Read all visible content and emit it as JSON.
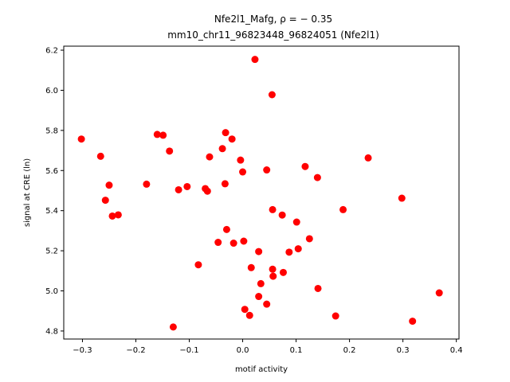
{
  "chart_data": {
    "type": "scatter",
    "title_line1": "Nfe2l1_Mafg, ρ = − 0.35",
    "title_line2": "mm10_chr11_96823448_96824051 (Nfe2l1)",
    "xlabel": "motif activity",
    "ylabel": "signal at CRE (ln)",
    "xlim": [
      -0.335,
      0.405
    ],
    "ylim": [
      4.76,
      6.22
    ],
    "xticks": [
      "−0.3",
      "−0.2",
      "−0.1",
      "0.0",
      "0.1",
      "0.2",
      "0.3",
      "0.4"
    ],
    "xtick_values": [
      -0.3,
      -0.2,
      -0.1,
      0.0,
      0.1,
      0.2,
      0.3,
      0.4
    ],
    "yticks": [
      "4.8",
      "5.0",
      "5.2",
      "5.4",
      "5.6",
      "5.8",
      "6.0",
      "6.2"
    ],
    "ytick_values": [
      4.8,
      5.0,
      5.2,
      5.4,
      5.6,
      5.8,
      6.0,
      6.2
    ],
    "marker_color": "#ff0000",
    "points": [
      [
        -0.302,
        5.757
      ],
      [
        -0.266,
        5.671
      ],
      [
        -0.257,
        5.452
      ],
      [
        -0.25,
        5.527
      ],
      [
        -0.244,
        5.373
      ],
      [
        -0.233,
        5.379
      ],
      [
        -0.18,
        5.532
      ],
      [
        -0.16,
        5.78
      ],
      [
        -0.149,
        5.776
      ],
      [
        -0.137,
        5.697
      ],
      [
        -0.12,
        5.504
      ],
      [
        -0.104,
        5.52
      ],
      [
        -0.13,
        4.82
      ],
      [
        -0.083,
        5.13
      ],
      [
        -0.07,
        5.51
      ],
      [
        -0.066,
        5.497
      ],
      [
        -0.062,
        5.668
      ],
      [
        -0.046,
        5.242
      ],
      [
        -0.038,
        5.709
      ],
      [
        -0.033,
        5.534
      ],
      [
        -0.032,
        5.789
      ],
      [
        -0.03,
        5.306
      ],
      [
        -0.02,
        5.757
      ],
      [
        -0.017,
        5.238
      ],
      [
        -0.004,
        5.652
      ],
      [
        0.0,
        5.593
      ],
      [
        0.002,
        5.248
      ],
      [
        0.004,
        4.908
      ],
      [
        0.013,
        4.878
      ],
      [
        0.016,
        5.116
      ],
      [
        0.023,
        6.154
      ],
      [
        0.03,
        5.196
      ],
      [
        0.03,
        4.972
      ],
      [
        0.034,
        5.036
      ],
      [
        0.045,
        5.603
      ],
      [
        0.045,
        4.934
      ],
      [
        0.055,
        5.978
      ],
      [
        0.056,
        5.405
      ],
      [
        0.056,
        5.108
      ],
      [
        0.057,
        5.073
      ],
      [
        0.074,
        5.378
      ],
      [
        0.076,
        5.092
      ],
      [
        0.087,
        5.193
      ],
      [
        0.101,
        5.343
      ],
      [
        0.104,
        5.21
      ],
      [
        0.117,
        5.62
      ],
      [
        0.125,
        5.26
      ],
      [
        0.14,
        5.565
      ],
      [
        0.141,
        5.012
      ],
      [
        0.174,
        4.875
      ],
      [
        0.188,
        5.405
      ],
      [
        0.235,
        5.663
      ],
      [
        0.298,
        5.462
      ],
      [
        0.318,
        4.849
      ],
      [
        0.368,
        4.99
      ]
    ]
  }
}
